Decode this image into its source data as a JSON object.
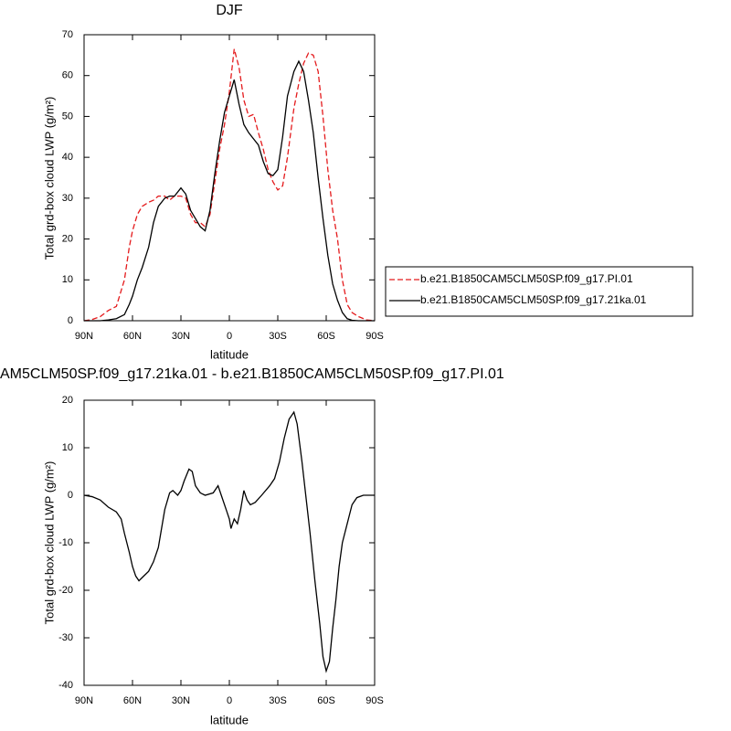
{
  "chart_data": [
    {
      "type": "line",
      "title": "DJF",
      "xlabel": "latitude",
      "ylabel": "Total grd-box cloud LWP (g/m²)",
      "x": [
        90,
        85,
        80,
        75,
        70,
        65,
        62,
        60,
        57,
        54,
        50,
        47,
        44,
        40,
        37,
        34,
        30,
        27,
        24,
        21,
        18,
        15,
        12,
        9,
        6,
        3,
        0,
        -3,
        -6,
        -9,
        -12,
        -15,
        -18,
        -21,
        -24,
        -27,
        -30,
        -33,
        -36,
        -40,
        -43,
        -46,
        -49,
        -52,
        -55,
        -58,
        -61,
        -64,
        -67,
        -70,
        -73,
        -76,
        -80,
        -85,
        -90
      ],
      "series": [
        {
          "name": "b.e21.B1850CAM5CLM50SP.f09_g17.PI.01",
          "color": "#e41a1c",
          "dashed": true,
          "values": [
            0,
            0.3,
            1,
            2.5,
            3.5,
            10,
            18,
            22,
            26,
            28,
            29,
            29.5,
            30.5,
            30.5,
            29.5,
            30.5,
            30.5,
            30,
            26,
            24,
            24,
            23,
            26,
            34,
            42,
            48,
            56,
            66.5,
            62,
            54,
            50,
            50.5,
            46,
            42,
            37,
            34,
            32,
            33,
            40,
            52,
            58,
            63,
            65.5,
            65,
            61,
            50,
            37,
            27,
            20,
            10,
            4,
            2,
            1,
            0.2,
            0
          ]
        },
        {
          "name": "b.e21.B1850CAM5CLM50SP.f09_g17.21ka.01",
          "color": "#000000",
          "dashed": false,
          "values": [
            0,
            0,
            0,
            0.2,
            0.5,
            1.5,
            4,
            6,
            10,
            13,
            18,
            24,
            28,
            30,
            30.5,
            30.5,
            32.5,
            31,
            27,
            25,
            23,
            22,
            27,
            36,
            44,
            51,
            55,
            59,
            53,
            48,
            46,
            44.5,
            43,
            39,
            36,
            35.5,
            37,
            45,
            55,
            61,
            63.5,
            61,
            54,
            46,
            35,
            25,
            16,
            9,
            5,
            2,
            0.5,
            0.1,
            0,
            0,
            0
          ]
        }
      ],
      "xlim": [
        90,
        -90
      ],
      "xticks": [
        {
          "value": 90,
          "label": "90N"
        },
        {
          "value": 60,
          "label": "60N"
        },
        {
          "value": 30,
          "label": "30N"
        },
        0,
        {
          "value": -30,
          "label": "30S"
        },
        {
          "value": -60,
          "label": "60S"
        },
        {
          "value": -90,
          "label": "90S"
        }
      ],
      "ylim": [
        0,
        70
      ],
      "yticks": [
        0,
        10,
        20,
        30,
        40,
        50,
        60,
        70
      ],
      "legend": "right"
    },
    {
      "type": "line",
      "title": "AM5CLM50SP.f09_g17.21ka.01 - b.e21.B1850CAM5CLM50SP.f09_g17.PI.01",
      "xlabel": "latitude",
      "ylabel": "Total grd-box cloud LWP (g/m²)",
      "x": [
        90,
        85,
        80,
        75,
        70,
        67,
        65,
        62,
        60,
        58,
        56,
        53,
        50,
        47,
        44,
        42,
        40,
        37,
        35,
        32,
        30,
        28,
        25,
        23,
        21,
        18,
        15,
        10,
        7,
        5,
        2,
        0,
        -1,
        -2,
        -3,
        -5,
        -7,
        -9,
        -11,
        -13,
        -16,
        -20,
        -25,
        -28,
        -31,
        -34,
        -37,
        -40,
        -42,
        -45,
        -48,
        -50,
        -53,
        -56,
        -58,
        -60,
        -62,
        -64,
        -66,
        -68,
        -70,
        -73,
        -76,
        -79,
        -83,
        -90
      ],
      "series": [
        {
          "color": "#000000",
          "dashed": false,
          "values": [
            0,
            -0.3,
            -1,
            -2.5,
            -3.5,
            -5,
            -8,
            -12,
            -15,
            -17,
            -18,
            -17,
            -16,
            -14,
            -11,
            -7,
            -3,
            0.5,
            1,
            0,
            1,
            3,
            5.5,
            5,
            2,
            0.5,
            0,
            0.5,
            2,
            0,
            -3,
            -5,
            -7,
            -6,
            -5,
            -6,
            -3,
            1,
            -1,
            -2,
            -1.5,
            0,
            2,
            3.5,
            7,
            12,
            16,
            17.5,
            15,
            7,
            -2,
            -8,
            -18,
            -27,
            -34,
            -37,
            -35,
            -28,
            -22,
            -15,
            -10,
            -6,
            -2,
            -0.5,
            0,
            0
          ]
        }
      ],
      "xlim": [
        90,
        -90
      ],
      "xticks": [
        {
          "value": 90,
          "label": "90N"
        },
        {
          "value": 60,
          "label": "60N"
        },
        {
          "value": 30,
          "label": "30N"
        },
        0,
        {
          "value": -30,
          "label": "30S"
        },
        {
          "value": -60,
          "label": "60S"
        },
        {
          "value": -90,
          "label": "90S"
        }
      ],
      "ylim": [
        -40,
        20
      ],
      "yticks": [
        -40,
        -30,
        -20,
        -10,
        0,
        10,
        20
      ]
    }
  ]
}
